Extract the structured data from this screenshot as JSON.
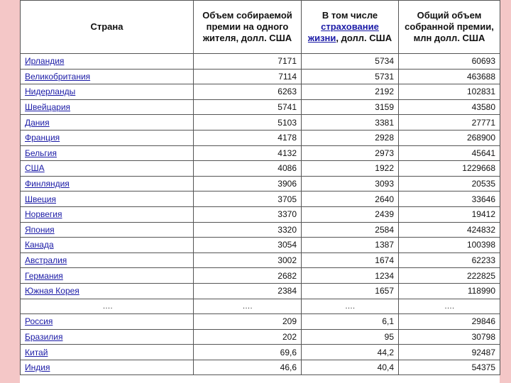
{
  "headers": {
    "country": "Страна",
    "per_capita": "Объем собираемой премии на одного жителя, долл. США",
    "life_prefix": "В том числе",
    "life_link": "страхование жизни",
    "life_suffix": ", долл. США",
    "total": "Общий объем собранной премии, млн долл. США"
  },
  "rows": [
    {
      "country": "Ирландия",
      "per_capita": "7171",
      "life": "5734",
      "total": "60693"
    },
    {
      "country": "Великобритания",
      "per_capita": "7114",
      "life": "5731",
      "total": "463688"
    },
    {
      "country": "Нидерланды",
      "per_capita": "6263",
      "life": "2192",
      "total": "102831"
    },
    {
      "country": "Швейцария",
      "per_capita": "5741",
      "life": "3159",
      "total": "43580"
    },
    {
      "country": "Дания",
      "per_capita": "5103",
      "life": "3381",
      "total": "27771"
    },
    {
      "country": "Франция",
      "per_capita": "4178",
      "life": "2928",
      "total": "268900"
    },
    {
      "country": "Бельгия",
      "per_capita": "4132",
      "life": "2973",
      "total": "45641"
    },
    {
      "country": "США",
      "per_capita": "4086",
      "life": "1922",
      "total": "1229668"
    },
    {
      "country": "Финляндия",
      "per_capita": "3906",
      "life": "3093",
      "total": "20535"
    },
    {
      "country": "Швеция",
      "per_capita": "3705",
      "life": "2640",
      "total": "33646"
    },
    {
      "country": "Норвегия",
      "per_capita": "3370",
      "life": "2439",
      "total": "19412"
    },
    {
      "country": "Япония",
      "per_capita": "3320",
      "life": "2584",
      "total": "424832"
    },
    {
      "country": "Канада",
      "per_capita": "3054",
      "life": "1387",
      "total": "100398"
    },
    {
      "country": "Австралия",
      "per_capita": "3002",
      "life": "1674",
      "total": "62233"
    },
    {
      "country": "Германия",
      "per_capita": "2682",
      "life": "1234",
      "total": "222825"
    },
    {
      "country": "Южная Корея",
      "per_capita": "2384",
      "life": "1657",
      "total": "118990"
    },
    {
      "gap": true,
      "country": "….",
      "per_capita": "….",
      "life": "….",
      "total": "…."
    },
    {
      "country": "Россия",
      "per_capita": "209",
      "life": "6,1",
      "total": "29846"
    },
    {
      "country": "Бразилия",
      "per_capita": "202",
      "life": "95",
      "total": "30798"
    },
    {
      "country": "Китай",
      "per_capita": "69,6",
      "life": "44,2",
      "total": "92487"
    },
    {
      "country": "Индия",
      "per_capita": "46,6",
      "life": "40,4",
      "total": "54375"
    }
  ]
}
